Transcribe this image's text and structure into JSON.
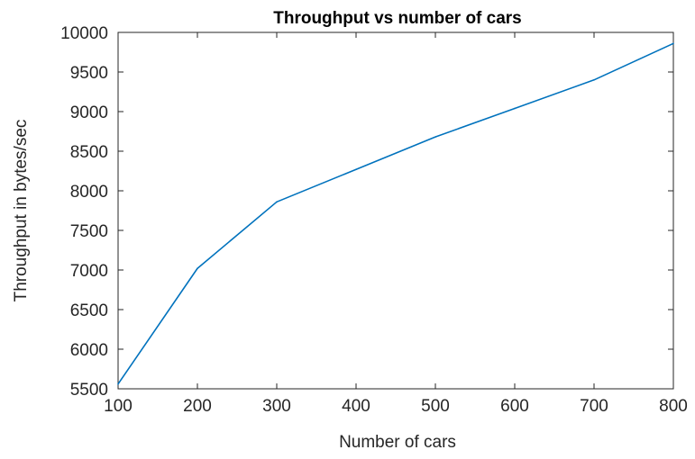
{
  "chart_data": {
    "type": "line",
    "title": "Throughput vs number of cars",
    "xlabel": "Number of cars",
    "ylabel": "Throughput in bytes/sec",
    "xlim": [
      100,
      800
    ],
    "ylim": [
      5500,
      10000
    ],
    "x_ticks": [
      "100",
      "200",
      "300",
      "400",
      "500",
      "600",
      "700",
      "800"
    ],
    "y_ticks": [
      "5500",
      "6000",
      "6500",
      "7000",
      "7500",
      "8000",
      "8500",
      "9000",
      "9500",
      "10000"
    ],
    "grid": false,
    "series": [
      {
        "x": [
          100,
          200,
          300,
          400,
          500,
          600,
          700,
          800
        ],
        "y": [
          5560,
          7020,
          7860,
          8270,
          8680,
          9040,
          9400,
          9860
        ],
        "color": "#0072BD"
      }
    ]
  }
}
